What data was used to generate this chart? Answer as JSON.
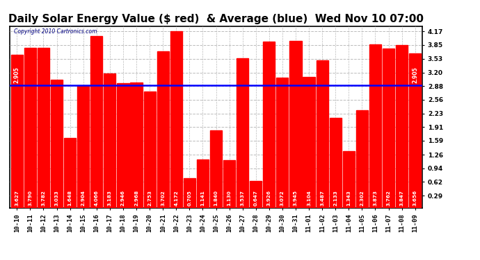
{
  "title": "Daily Solar Energy Value ($ red)  & Average (blue)  Wed Nov 10 07:00",
  "copyright": "Copyright 2010 Cartronics.com",
  "average": 2.905,
  "categories": [
    "10-10",
    "10-11",
    "10-12",
    "10-13",
    "10-14",
    "10-15",
    "10-16",
    "10-17",
    "10-18",
    "10-19",
    "10-20",
    "10-21",
    "10-22",
    "10-23",
    "10-24",
    "10-25",
    "10-26",
    "10-27",
    "10-28",
    "10-29",
    "10-30",
    "10-31",
    "11-01",
    "11-02",
    "11-03",
    "11-04",
    "11-05",
    "11-06",
    "11-07",
    "11-08",
    "11-09"
  ],
  "values": [
    3.627,
    3.79,
    3.782,
    3.033,
    1.648,
    2.904,
    4.066,
    3.183,
    2.946,
    2.968,
    2.753,
    3.702,
    4.172,
    0.705,
    1.141,
    1.84,
    1.13,
    3.537,
    0.647,
    3.926,
    3.072,
    3.945,
    3.104,
    3.487,
    2.133,
    1.343,
    2.302,
    3.873,
    3.762,
    3.847,
    3.656
  ],
  "bar_color": "#ff0000",
  "line_color": "#0000ff",
  "bg_color": "#ffffff",
  "plot_bg_color": "#ffffff",
  "yticks": [
    0.29,
    0.62,
    0.94,
    1.26,
    1.59,
    1.91,
    2.23,
    2.56,
    2.88,
    3.2,
    3.53,
    3.85,
    4.17
  ],
  "ylim": [
    0.0,
    4.3
  ],
  "grid_color": "#bbbbbb",
  "title_fontsize": 11,
  "tick_fontsize": 6.5,
  "value_fontsize": 5.2,
  "average_label": "2.905",
  "avg_label_fontsize": 5.5
}
